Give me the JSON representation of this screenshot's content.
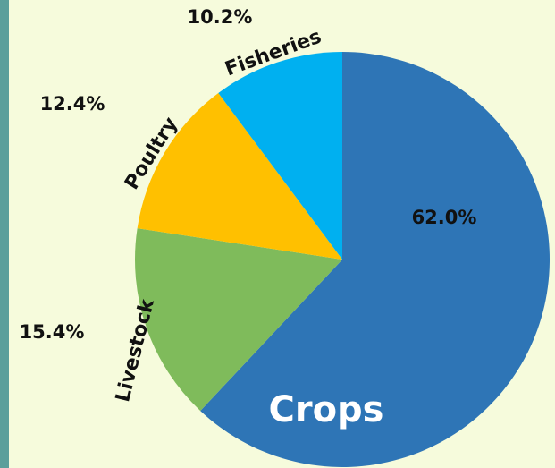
{
  "chart_data": {
    "type": "pie",
    "categories": [
      "Crops",
      "Livestock",
      "Poultry",
      "Fisheries"
    ],
    "values": [
      62.0,
      15.4,
      12.4,
      10.2
    ],
    "value_labels": [
      "62.0%",
      "15.4%",
      "12.4%",
      "10.2%"
    ],
    "colors": [
      "#2e75b6",
      "#7fbb5b",
      "#ffc000",
      "#00b0f0"
    ]
  }
}
